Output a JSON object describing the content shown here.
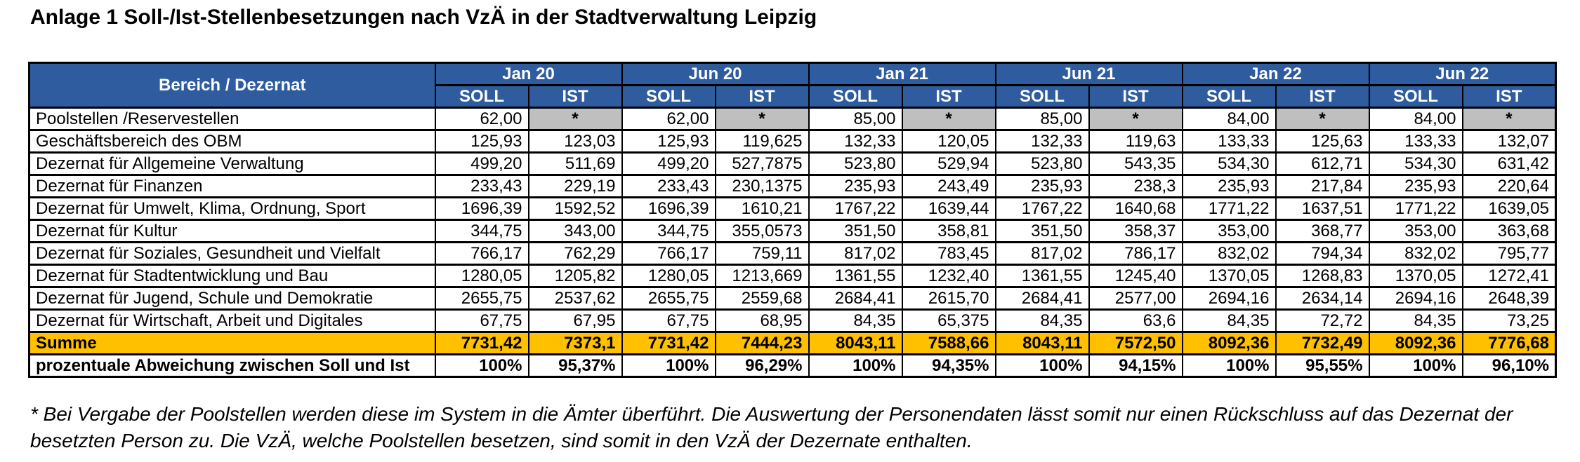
{
  "title": "Anlage 1 Soll-/Ist-Stellenbesetzungen nach VzÄ in der Stadtverwaltung Leipzig",
  "table": {
    "row_header": "Bereich / Dezernat",
    "periods": [
      "Jan 20",
      "Jun 20",
      "Jan 21",
      "Jun 21",
      "Jan 22",
      "Jun 22"
    ],
    "subheaders": [
      "SOLL",
      "IST"
    ],
    "rows": [
      {
        "label": "Poolstellen /Reservestellen",
        "values": [
          "62,00",
          "*",
          "62,00",
          "*",
          "85,00",
          "*",
          "85,00",
          "*",
          "84,00",
          "*",
          "84,00",
          "*"
        ]
      },
      {
        "label": "Geschäftsbereich des OBM",
        "values": [
          "125,93",
          "123,03",
          "125,93",
          "119,625",
          "132,33",
          "120,05",
          "132,33",
          "119,63",
          "133,33",
          "125,63",
          "133,33",
          "132,07"
        ]
      },
      {
        "label": "Dezernat für Allgemeine Verwaltung",
        "values": [
          "499,20",
          "511,69",
          "499,20",
          "527,7875",
          "523,80",
          "529,94",
          "523,80",
          "543,35",
          "534,30",
          "612,71",
          "534,30",
          "631,42"
        ]
      },
      {
        "label": "Dezernat für Finanzen",
        "values": [
          "233,43",
          "229,19",
          "233,43",
          "230,1375",
          "235,93",
          "243,49",
          "235,93",
          "238,3",
          "235,93",
          "217,84",
          "235,93",
          "220,64"
        ]
      },
      {
        "label": "Dezernat für Umwelt, Klima, Ordnung, Sport",
        "values": [
          "1696,39",
          "1592,52",
          "1696,39",
          "1610,21",
          "1767,22",
          "1639,44",
          "1767,22",
          "1640,68",
          "1771,22",
          "1637,51",
          "1771,22",
          "1639,05"
        ]
      },
      {
        "label": "Dezernat für Kultur",
        "values": [
          "344,75",
          "343,00",
          "344,75",
          "355,0573",
          "351,50",
          "358,81",
          "351,50",
          "358,37",
          "353,00",
          "368,77",
          "353,00",
          "363,68"
        ]
      },
      {
        "label": "Dezernat für Soziales, Gesundheit und Vielfalt",
        "values": [
          "766,17",
          "762,29",
          "766,17",
          "759,11",
          "817,02",
          "783,45",
          "817,02",
          "786,17",
          "832,02",
          "794,34",
          "832,02",
          "795,77"
        ]
      },
      {
        "label": "Dezernat für Stadtentwicklung und Bau",
        "values": [
          "1280,05",
          "1205,82",
          "1280,05",
          "1213,669",
          "1361,55",
          "1232,40",
          "1361,55",
          "1245,40",
          "1370,05",
          "1268,83",
          "1370,05",
          "1272,41"
        ]
      },
      {
        "label": "Dezernat für Jugend, Schule und Demokratie",
        "values": [
          "2655,75",
          "2537,62",
          "2655,75",
          "2559,68",
          "2684,41",
          "2615,70",
          "2684,41",
          "2577,00",
          "2694,16",
          "2634,14",
          "2694,16",
          "2648,39"
        ]
      },
      {
        "label": "Dezernat für Wirtschaft, Arbeit und Digitales",
        "values": [
          "67,75",
          "67,95",
          "67,75",
          "68,95",
          "84,35",
          "65,375",
          "84,35",
          "63,6",
          "84,35",
          "72,72",
          "84,35",
          "73,25"
        ]
      }
    ],
    "summe": {
      "label": "Summe",
      "values": [
        "7731,42",
        "7373,1",
        "7731,42",
        "7444,23",
        "8043,11",
        "7588,66",
        "8043,11",
        "7572,50",
        "8092,36",
        "7732,49",
        "8092,36",
        "7776,68"
      ]
    },
    "deviation": {
      "label": "prozentuale Abweichung zwischen Soll und Ist",
      "values": [
        "100%",
        "95,37%",
        "100%",
        "96,29%",
        "100%",
        "94,35%",
        "100%",
        "94,15%",
        "100%",
        "95,55%",
        "100%",
        "96,10%"
      ]
    }
  },
  "footnote": {
    "line1": "* Bei Vergabe der Poolstellen werden diese im System in die Ämter überführt. Die Auswertung der Personendaten lässt somit nur einen Rückschluss auf das Dezernat der",
    "line2": "besetzten Person zu. Die VzÄ, welche Poolstellen besetzen, sind somit in den VzÄ der Dezernate enthalten."
  },
  "colors": {
    "header_blue": "#2E5C9E",
    "sum_orange": "#FFC000",
    "masked_gray": "#BFBFBF"
  }
}
